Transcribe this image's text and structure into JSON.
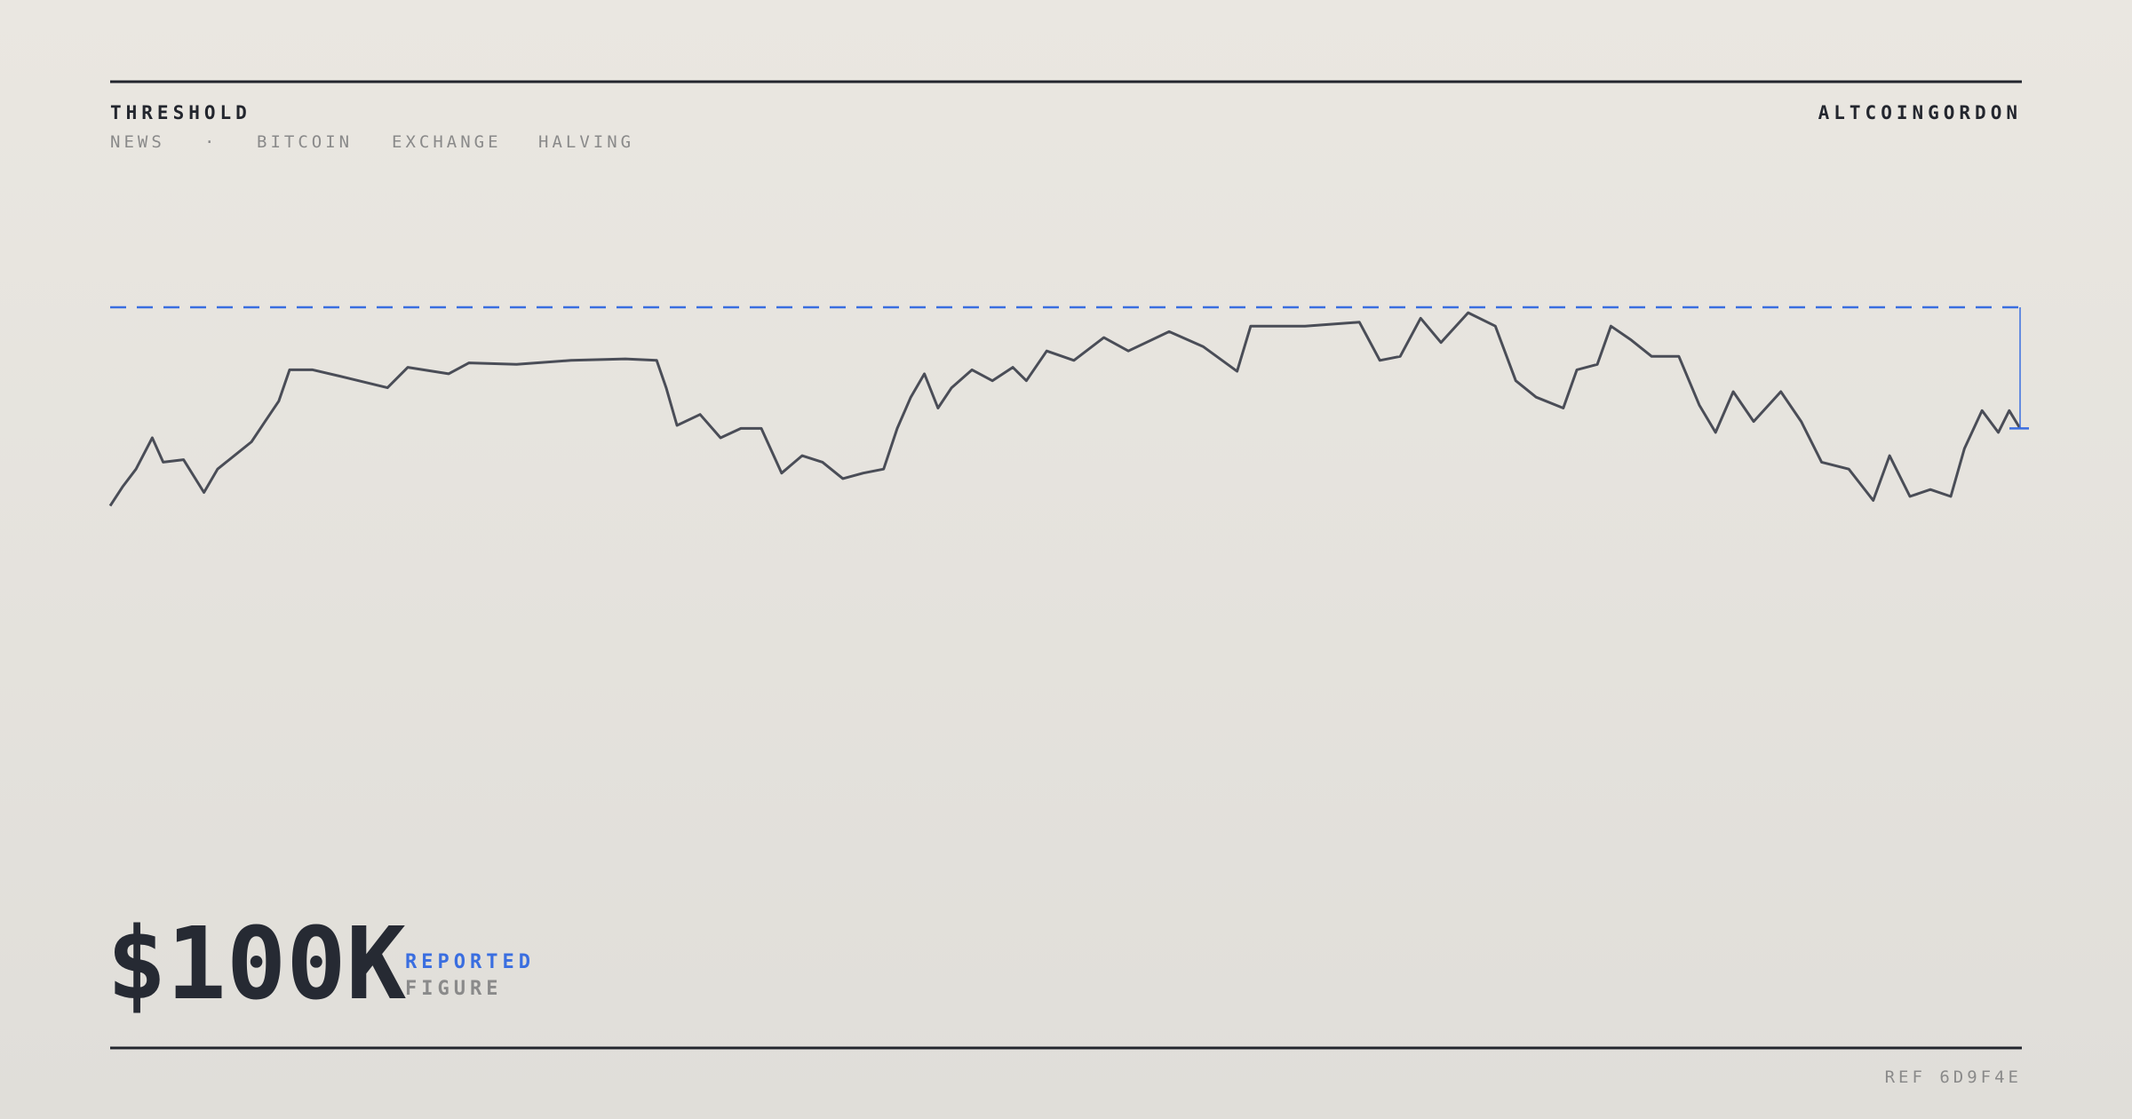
{
  "header": {
    "brand": "THRESHOLD",
    "account": "ALTCOINGORDON",
    "nav": [
      "NEWS",
      "·",
      "BITCOIN",
      "EXCHANGE",
      "HALVING"
    ]
  },
  "chart_data": {
    "type": "line",
    "color": "#4a4d57",
    "threshold_color": "#3a6ee0",
    "threshold": 100,
    "xlim": [
      0,
      1405
    ],
    "ylim": [
      0,
      100
    ],
    "x": [
      0,
      9,
      19,
      31,
      39,
      54,
      69,
      79,
      94,
      104,
      114,
      124,
      132,
      149,
      174,
      204,
      219,
      249,
      264,
      299,
      339,
      379,
      402,
      409,
      417,
      434,
      449,
      464,
      479,
      494,
      509,
      524,
      539,
      554,
      569,
      579,
      589,
      599,
      609,
      619,
      634,
      649,
      664,
      674,
      689,
      709,
      731,
      749,
      779,
      804,
      829,
      839,
      879,
      919,
      934,
      949,
      964,
      979,
      999,
      1019,
      1034,
      1049,
      1069,
      1079,
      1094,
      1104,
      1119,
      1134,
      1154,
      1169,
      1181,
      1194,
      1209,
      1229,
      1244,
      1259,
      1279,
      1297,
      1309,
      1324,
      1339,
      1354,
      1364,
      1377,
      1389,
      1397,
      1405
    ],
    "values": [
      60,
      63.8,
      67.4,
      73.7,
      68.8,
      69.3,
      62.7,
      67.4,
      70.7,
      72.9,
      77,
      81.1,
      87.4,
      87.4,
      85.8,
      83.8,
      87.9,
      86.6,
      88.8,
      88.5,
      89.3,
      89.6,
      89.3,
      83.8,
      76.2,
      78.4,
      73.7,
      75.6,
      75.6,
      66.6,
      70.1,
      68.8,
      65.5,
      66.6,
      67.4,
      75.6,
      81.9,
      86.6,
      79.7,
      83.8,
      87.4,
      85.2,
      87.9,
      85.2,
      91.2,
      89.3,
      93.9,
      91.2,
      95.1,
      92.1,
      87.1,
      96.2,
      96.2,
      97,
      89.3,
      90.1,
      97.8,
      92.9,
      98.9,
      96.2,
      85.2,
      81.9,
      79.7,
      87.4,
      88.5,
      96.2,
      93.4,
      90.1,
      90.1,
      80.3,
      74.8,
      83,
      77,
      83,
      77,
      68.8,
      67.4,
      61.1,
      70.1,
      61.9,
      63.3,
      61.9,
      71.5,
      79.2,
      74.8,
      79.2,
      75.6
    ]
  },
  "figure": {
    "value": "$100K",
    "label": "REPORTED",
    "sublabel": "FIGURE"
  },
  "footer": {
    "ref": "REF 6D9F4E"
  }
}
